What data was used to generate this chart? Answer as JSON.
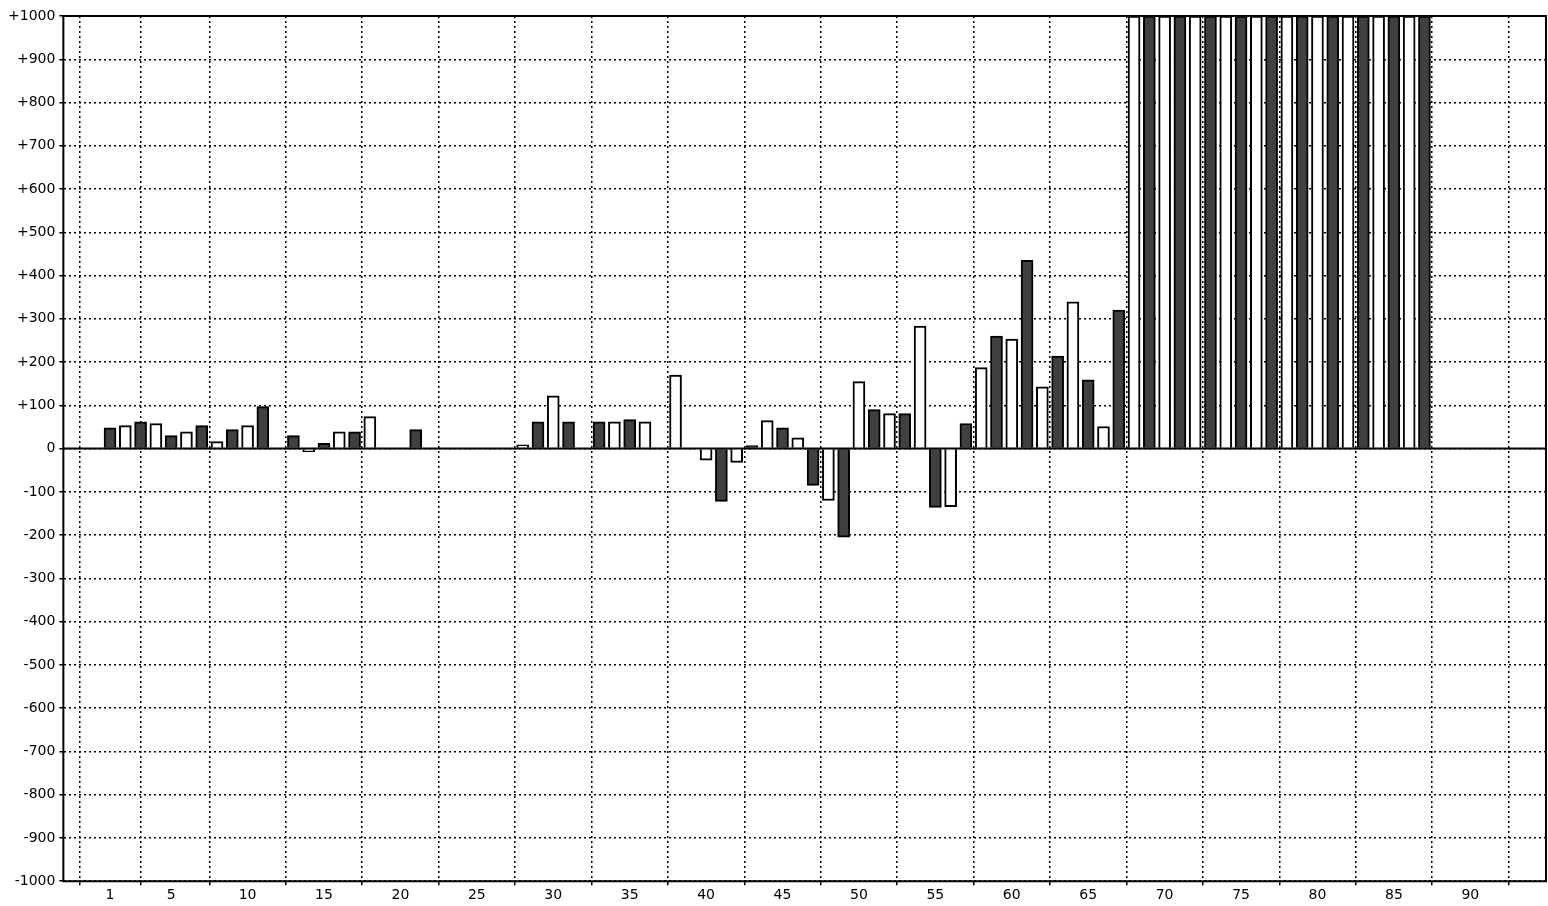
{
  "chart_data": {
    "type": "bar",
    "x": [
      1,
      2,
      3,
      4,
      5,
      6,
      7,
      8,
      9,
      10,
      11,
      12,
      13,
      14,
      15,
      16,
      17,
      18,
      19,
      20,
      21,
      22,
      23,
      24,
      25,
      26,
      27,
      28,
      29,
      30,
      31,
      32,
      33,
      34,
      35,
      36,
      37,
      38,
      39,
      40,
      41,
      42,
      43,
      44,
      45,
      46,
      47,
      48,
      49,
      50,
      51,
      52,
      53,
      54,
      55,
      56,
      57,
      58,
      59,
      60,
      61,
      62,
      63,
      64,
      65,
      66,
      67,
      68,
      69,
      70,
      71,
      72,
      73,
      74,
      75,
      76,
      77,
      78,
      79,
      80,
      81,
      82,
      83,
      84,
      85,
      86,
      87
    ],
    "values": [
      48,
      53,
      62,
      58,
      30,
      39,
      53,
      16,
      44,
      53,
      97,
      null,
      30,
      -7,
      12,
      39,
      39,
      74,
      null,
      null,
      44,
      null,
      null,
      null,
      null,
      null,
      null,
      9,
      62,
      122,
      62,
      null,
      62,
      62,
      67,
      62,
      null,
      170,
      null,
      -27,
      -122,
      -32,
      7,
      65,
      48,
      25,
      -85,
      -120,
      -205,
      155,
      90,
      81,
      81,
      283,
      -136,
      -134,
      58,
      187,
      260,
      253,
      435,
      143,
      214,
      339,
      159,
      51,
      320,
      1000,
      1000,
      1000,
      1000,
      1000,
      1000,
      1000,
      1000,
      1000,
      1000,
      1000,
      1000,
      1000,
      1000,
      1000,
      1000,
      1000,
      1000,
      1000,
      1000
    ],
    "colors": [
      "#404040",
      "#ffffff",
      "#404040",
      "#ffffff",
      "#404040",
      "#ffffff",
      "#404040",
      "#ffffff",
      "#404040",
      "#ffffff",
      "#404040",
      "#ffffff",
      "#404040",
      "#ffffff",
      "#404040",
      "#ffffff",
      "#404040",
      "#ffffff",
      "#404040",
      "#ffffff",
      "#404040",
      "#ffffff",
      "#404040",
      "#ffffff",
      "#404040",
      "#ffffff",
      "#404040",
      "#ffffff",
      "#404040",
      "#ffffff",
      "#404040",
      "#ffffff",
      "#404040",
      "#ffffff",
      "#404040",
      "#ffffff",
      "#404040",
      "#ffffff",
      "#404040",
      "#ffffff",
      "#404040",
      "#ffffff",
      "#404040",
      "#ffffff",
      "#404040",
      "#ffffff",
      "#404040",
      "#ffffff",
      "#404040",
      "#ffffff",
      "#404040",
      "#ffffff",
      "#404040",
      "#ffffff",
      "#404040",
      "#ffffff",
      "#404040",
      "#ffffff",
      "#404040",
      "#ffffff",
      "#404040",
      "#ffffff",
      "#404040",
      "#ffffff",
      "#404040",
      "#ffffff",
      "#404040",
      "#ffffff",
      "#404040",
      "#ffffff",
      "#404040",
      "#ffffff",
      "#404040",
      "#ffffff",
      "#404040",
      "#ffffff",
      "#404040",
      "#ffffff",
      "#404040",
      "#ffffff",
      "#404040",
      "#ffffff",
      "#404040",
      "#ffffff",
      "#404040",
      "#ffffff",
      "#404040"
    ],
    "xlim": [
      0.5,
      92.4
    ],
    "xticks": [
      1,
      5,
      10,
      15,
      20,
      25,
      30,
      35,
      40,
      45,
      50,
      55,
      60,
      65,
      70,
      75,
      80,
      85,
      90
    ],
    "ylim": [
      -1000,
      1000
    ],
    "yticks": [
      {
        "value": -1000,
        "label": "-1000"
      },
      {
        "value": -900,
        "label": "-900"
      },
      {
        "value": -800,
        "label": "-800"
      },
      {
        "value": -700,
        "label": "-700"
      },
      {
        "value": -600,
        "label": "-600"
      },
      {
        "value": -500,
        "label": "-500"
      },
      {
        "value": -400,
        "label": "-400"
      },
      {
        "value": -300,
        "label": "-300"
      },
      {
        "value": -200,
        "label": "-200"
      },
      {
        "value": -100,
        "label": "-100"
      },
      0,
      {
        "value": 100,
        "label": "+100"
      },
      {
        "value": 200,
        "label": "+200"
      },
      {
        "value": 300,
        "label": "+300"
      },
      {
        "value": 400,
        "label": "+400"
      },
      {
        "value": 500,
        "label": "+500"
      },
      {
        "value": 600,
        "label": "+600"
      },
      {
        "value": 700,
        "label": "+700"
      },
      {
        "value": 800,
        "label": "+800"
      },
      {
        "value": 900,
        "label": "+900"
      },
      {
        "value": 1000,
        "label": "+1000"
      }
    ],
    "grid": true,
    "legend": false
  }
}
